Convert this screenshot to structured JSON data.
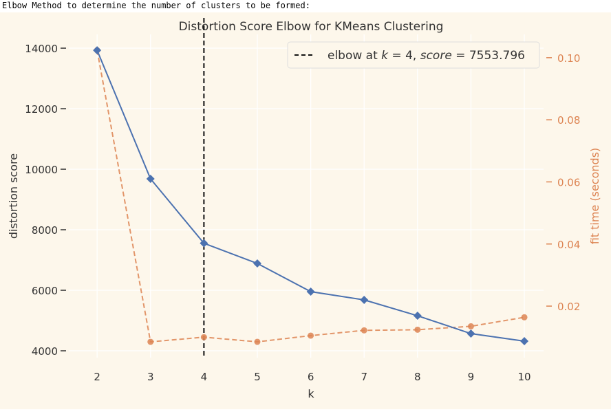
{
  "caption": "Elbow Method to determine the number of clusters to be formed:",
  "chart_data": {
    "type": "line",
    "title": "Distortion Score Elbow for KMeans Clustering",
    "xlabel": "k",
    "ylabel": "distortion score",
    "y2label": "fit time (seconds)",
    "x": [
      2,
      3,
      4,
      5,
      6,
      7,
      8,
      9,
      10
    ],
    "xticks": [
      "2",
      "3",
      "4",
      "5",
      "6",
      "7",
      "8",
      "9",
      "10"
    ],
    "xlim": [
      1.47,
      10.36
    ],
    "ylim": [
      3773,
      14455
    ],
    "yticks": [
      "4000",
      "6000",
      "8000",
      "10000",
      "12000",
      "14000"
    ],
    "y2lim": [
      0.0034,
      0.1075
    ],
    "y2ticks": [
      "0.02",
      "0.04",
      "0.06",
      "0.08",
      "0.10"
    ],
    "series": [
      {
        "name": "distortion score",
        "axis": "left",
        "color": "#4c72b0",
        "values": [
          13930,
          9682,
          7554,
          6886,
          5955,
          5682,
          5159,
          4568,
          4318
        ]
      },
      {
        "name": "fit time",
        "axis": "right",
        "color": "#dd8452",
        "values": [
          0.1024,
          0.0085,
          0.01,
          0.0085,
          0.0105,
          0.0122,
          0.0124,
          0.0135,
          0.0164
        ]
      }
    ],
    "elbow": {
      "k": 4,
      "score": 7553.796
    },
    "legend": {
      "placement": "top-right",
      "prefix": "elbow at ",
      "k_sym": "k",
      "eq1": " = 4, ",
      "score_sym": "score",
      "eq2": " = 7553.796"
    }
  }
}
